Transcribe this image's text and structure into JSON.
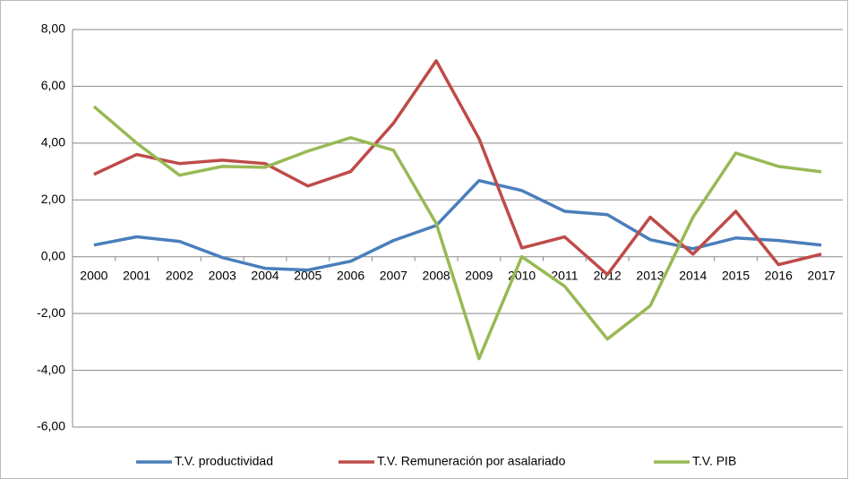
{
  "chart_data": {
    "type": "line",
    "categories": [
      "2000",
      "2001",
      "2002",
      "2003",
      "2004",
      "2005",
      "2006",
      "2007",
      "2008",
      "2009",
      "2010",
      "2011",
      "2012",
      "2013",
      "2014",
      "2015",
      "2016",
      "2017"
    ],
    "series": [
      {
        "name": "T.V. productividad",
        "color": "#4a7ebb",
        "values": [
          0.41,
          0.7,
          0.54,
          -0.03,
          -0.41,
          -0.47,
          -0.16,
          0.57,
          1.1,
          2.68,
          2.33,
          1.6,
          1.48,
          0.6,
          0.28,
          0.66,
          0.57,
          0.41
        ]
      },
      {
        "name": "T.V. Remuneración por asalariado",
        "color": "#be4b48",
        "values": [
          2.9,
          3.6,
          3.28,
          3.4,
          3.28,
          2.49,
          3.0,
          4.7,
          6.9,
          4.16,
          0.31,
          0.7,
          -0.63,
          1.39,
          0.09,
          1.6,
          -0.28,
          0.09
        ]
      },
      {
        "name": "T.V. PIB",
        "color": "#98b954",
        "values": [
          5.29,
          4.0,
          2.87,
          3.18,
          3.15,
          3.72,
          4.19,
          3.75,
          1.17,
          -3.59,
          0.0,
          -1.04,
          -2.9,
          -1.73,
          1.39,
          3.65,
          3.18,
          2.99
        ]
      }
    ],
    "ylim": [
      -6,
      8
    ],
    "yticks": [
      {
        "value": -6,
        "label": "-6,00"
      },
      {
        "value": -4,
        "label": "-4,00"
      },
      {
        "value": -2,
        "label": "-2,00"
      },
      {
        "value": 0,
        "label": "0,00"
      },
      {
        "value": 2,
        "label": "2,00"
      },
      {
        "value": 4,
        "label": "4,00"
      },
      {
        "value": 6,
        "label": "6,00"
      },
      {
        "value": 8,
        "label": "8,00"
      }
    ],
    "grid": true,
    "legend": "bottom"
  }
}
